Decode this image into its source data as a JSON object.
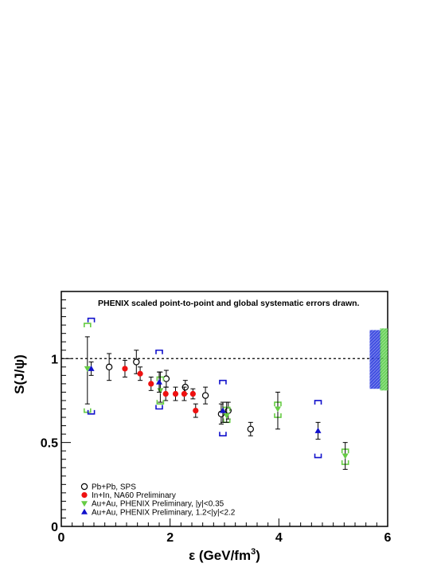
{
  "chart_data": {
    "type": "scatter",
    "title": "",
    "annotation": "PHENIX scaled point-to-point and global systematic errors drawn.",
    "xlabel": "ε (GeV/fm",
    "xlabel_sup": "3",
    "xlabel_close": ")",
    "ylabel": "S(J/ψ)",
    "xlim": [
      0,
      6
    ],
    "ylim": [
      0,
      1.4
    ],
    "xticks": [
      "0",
      "2",
      "4",
      "6"
    ],
    "yticks": [
      "0",
      "0.5",
      "1"
    ],
    "xtick_values": [
      0,
      2,
      4,
      6
    ],
    "ytick_values": [
      0,
      0.5,
      1
    ],
    "reference_line": 1.0,
    "grid": false,
    "legend_position": "bottom-left",
    "series": [
      {
        "name": "Pb+Pb, SPS",
        "marker": "open-circle",
        "color": "#000000",
        "points": [
          {
            "x": 0.88,
            "y": 0.95,
            "lo": 0.87,
            "hi": 1.03
          },
          {
            "x": 1.38,
            "y": 0.98,
            "lo": 0.91,
            "hi": 1.05
          },
          {
            "x": 1.93,
            "y": 0.88,
            "lo": 0.83,
            "hi": 0.93
          },
          {
            "x": 2.28,
            "y": 0.83,
            "lo": 0.79,
            "hi": 0.87
          },
          {
            "x": 2.65,
            "y": 0.78,
            "lo": 0.73,
            "hi": 0.83
          },
          {
            "x": 2.94,
            "y": 0.67,
            "lo": 0.61,
            "hi": 0.73
          },
          {
            "x": 3.07,
            "y": 0.69,
            "lo": 0.64,
            "hi": 0.74
          },
          {
            "x": 3.48,
            "y": 0.58,
            "lo": 0.54,
            "hi": 0.62
          }
        ]
      },
      {
        "name": "In+In, NA60 Preliminary",
        "marker": "filled-circle",
        "color": "#ee1111",
        "points": [
          {
            "x": 1.17,
            "y": 0.94,
            "lo": 0.89,
            "hi": 0.99
          },
          {
            "x": 1.45,
            "y": 0.91,
            "lo": 0.87,
            "hi": 0.95
          },
          {
            "x": 1.65,
            "y": 0.85,
            "lo": 0.81,
            "hi": 0.89
          },
          {
            "x": 1.92,
            "y": 0.79,
            "lo": 0.75,
            "hi": 0.83
          },
          {
            "x": 2.1,
            "y": 0.79,
            "lo": 0.75,
            "hi": 0.83
          },
          {
            "x": 2.26,
            "y": 0.79,
            "lo": 0.75,
            "hi": 0.83
          },
          {
            "x": 2.42,
            "y": 0.79,
            "lo": 0.76,
            "hi": 0.82
          },
          {
            "x": 2.47,
            "y": 0.69,
            "lo": 0.65,
            "hi": 0.73
          }
        ]
      },
      {
        "name": "Au+Au, PHENIX Preliminary, |y|<0.35",
        "marker": "down-triangle",
        "color": "#66cc44",
        "points": [
          {
            "x": 0.48,
            "y": 0.94,
            "lo": 0.73,
            "hi": 1.13,
            "sys_lo": 0.68,
            "sys_hi": 1.21
          },
          {
            "x": 1.82,
            "y": 0.81,
            "lo": 0.74,
            "hi": 0.92,
            "sys_lo": 0.73,
            "sys_hi": 0.89
          },
          {
            "x": 3.04,
            "y": 0.66,
            "lo": 0.62,
            "hi": 0.74,
            "sys_lo": 0.62,
            "sys_hi": 0.71
          },
          {
            "x": 3.98,
            "y": 0.7,
            "lo": 0.58,
            "hi": 0.8,
            "sys_lo": 0.65,
            "sys_hi": 0.74
          },
          {
            "x": 5.22,
            "y": 0.42,
            "lo": 0.34,
            "hi": 0.5,
            "sys_lo": 0.37,
            "sys_hi": 0.46
          }
        ]
      },
      {
        "name": "Au+Au, PHENIX Preliminary, 1.2<|y|<2.2",
        "marker": "up-triangle",
        "color": "#1111cc",
        "points": [
          {
            "x": 0.55,
            "y": 0.94,
            "lo": 0.9,
            "hi": 0.98,
            "sys_lo": 0.67,
            "sys_hi": 1.24
          },
          {
            "x": 1.8,
            "y": 0.86,
            "lo": 0.8,
            "hi": 0.92,
            "sys_lo": 0.7,
            "sys_hi": 1.05
          },
          {
            "x": 2.97,
            "y": 0.69,
            "lo": 0.62,
            "hi": 0.74,
            "sys_lo": 0.54,
            "sys_hi": 0.87
          },
          {
            "x": 4.72,
            "y": 0.57,
            "lo": 0.52,
            "hi": 0.62,
            "sys_lo": 0.41,
            "sys_hi": 0.75
          }
        ]
      }
    ],
    "global_systematic_boxes": [
      {
        "color": "#2233dd",
        "x_from": 5.67,
        "x_to": 5.88,
        "y_from": 0.82,
        "y_to": 1.17
      },
      {
        "color": "#55cc44",
        "x_from": 5.86,
        "x_to": 6.02,
        "y_from": 0.81,
        "y_to": 1.18
      }
    ]
  }
}
